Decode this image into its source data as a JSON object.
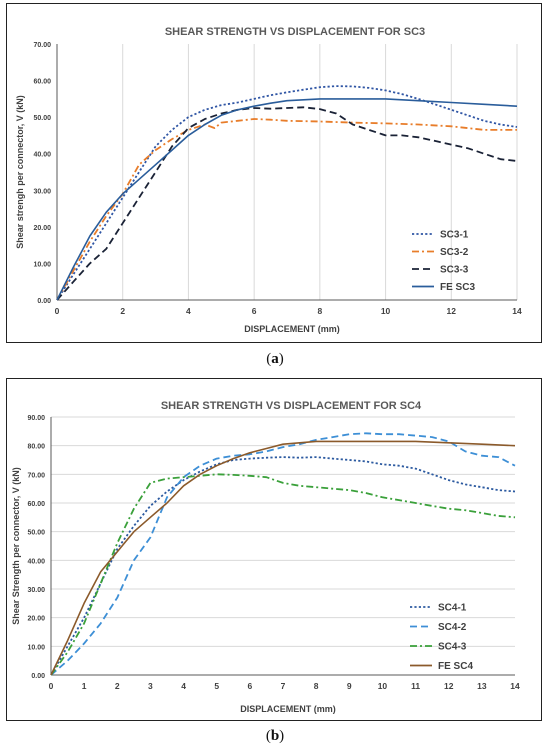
{
  "captions": {
    "a": {
      "open": "(",
      "letter": "a",
      "close": ")"
    },
    "b": {
      "open": "(",
      "letter": "b",
      "close": ")"
    }
  },
  "chart_data": [
    {
      "type": "line",
      "title": "SHEAR STRENGTH VS DISPLACEMENT FOR SC3",
      "xlabel": "DISPLACEMENT (mm)",
      "ylabel": "Shear strengh per connector, V (kN)",
      "xlim": [
        0,
        14
      ],
      "ylim": [
        0,
        70
      ],
      "xticks": [
        "0",
        "2",
        "4",
        "6",
        "8",
        "10",
        "12",
        "14"
      ],
      "xtick_values": [
        0,
        2,
        4,
        6,
        8,
        10,
        12,
        14
      ],
      "yticks": [
        "0.00",
        "10.00",
        "20.00",
        "30.00",
        "40.00",
        "50.00",
        "60.00",
        "70.00"
      ],
      "ytick_values": [
        0,
        10,
        20,
        30,
        40,
        50,
        60,
        70
      ],
      "grid": "vertical",
      "legend_position": "right",
      "series": [
        {
          "name": "SC3-1",
          "color": "#2f55a4",
          "style": "dotted",
          "x": [
            0,
            0.5,
            1,
            1.5,
            2,
            2.5,
            3,
            3.5,
            4,
            4.5,
            5,
            5.5,
            6,
            6.5,
            7,
            7.5,
            8,
            8.5,
            9,
            9.5,
            10,
            10.5,
            11,
            11.5,
            12,
            12.5,
            13,
            13.5,
            14
          ],
          "y": [
            0,
            7,
            14,
            21,
            28,
            35,
            42,
            46.5,
            50,
            52,
            53.3,
            54,
            55,
            56,
            56.8,
            57.5,
            58.2,
            58.5,
            58.4,
            58,
            57.3,
            56.3,
            55,
            53.5,
            52,
            50.5,
            49,
            48,
            47.3
          ]
        },
        {
          "name": "SC3-2",
          "color": "#e87d2a",
          "style": "dashdot",
          "x": [
            0,
            0.5,
            1,
            1.5,
            2,
            2.5,
            3,
            3.5,
            4,
            4.5,
            4.8,
            5,
            5.5,
            6,
            6.5,
            7,
            8,
            9,
            10,
            11,
            12,
            13,
            14
          ],
          "y": [
            0,
            8,
            16,
            23,
            29,
            37,
            41,
            44,
            46.5,
            48,
            47,
            48.5,
            49,
            49.5,
            49.3,
            49,
            48.8,
            48.5,
            48.3,
            48,
            47.5,
            46.5,
            46.5
          ]
        },
        {
          "name": "SC3-3",
          "color": "#1a2236",
          "style": "dashed",
          "x": [
            0,
            0.5,
            1,
            1.5,
            2,
            2.5,
            3,
            3.5,
            4,
            4.5,
            5,
            5.5,
            6,
            6.5,
            7,
            7.5,
            8,
            8.5,
            9,
            9.5,
            10,
            10.5,
            11,
            11.5,
            12,
            12.5,
            13,
            13.5,
            14
          ],
          "y": [
            0,
            5,
            10,
            14,
            21,
            28,
            35,
            42,
            47,
            49.5,
            51,
            52,
            52.5,
            52.3,
            52.5,
            52.7,
            52.2,
            51,
            48,
            46.5,
            45,
            45,
            44.5,
            43.5,
            42.5,
            41.5,
            40,
            38.5,
            38
          ]
        },
        {
          "name": "FE SC3",
          "color": "#2a5d9b",
          "style": "solid",
          "x": [
            0,
            0.5,
            1,
            1.5,
            2,
            2.5,
            3,
            3.5,
            4,
            4.5,
            5,
            5.5,
            6,
            6.5,
            7,
            8,
            9,
            10,
            11,
            12,
            13,
            14
          ],
          "y": [
            0,
            9,
            17.5,
            24,
            29,
            33,
            37,
            41,
            45,
            48,
            50.5,
            52,
            53,
            53.8,
            54.5,
            55,
            55,
            55,
            54.5,
            54,
            53.5,
            53
          ]
        }
      ]
    },
    {
      "type": "line",
      "title": "SHEAR STRENGTH VS DISPLACEMENT FOR SC4",
      "xlabel": "DISPLACEMENT (mm)",
      "ylabel": "Shear Strength per connector, V (kN)",
      "xlim": [
        0,
        14
      ],
      "ylim": [
        0,
        90
      ],
      "xticks": [
        "0",
        "1",
        "2",
        "3",
        "4",
        "5",
        "6",
        "7",
        "8",
        "9",
        "10",
        "11",
        "12",
        "13",
        "14"
      ],
      "xtick_values": [
        0,
        1,
        2,
        3,
        4,
        5,
        6,
        7,
        8,
        9,
        10,
        11,
        12,
        13,
        14
      ],
      "yticks": [
        "0.00",
        "10.00",
        "20.00",
        "30.00",
        "40.00",
        "50.00",
        "60.00",
        "70.00",
        "80.00",
        "90.00"
      ],
      "ytick_values": [
        0,
        10,
        20,
        30,
        40,
        50,
        60,
        70,
        80,
        90
      ],
      "grid": "horizontal",
      "legend_position": "right",
      "series": [
        {
          "name": "SC4-1",
          "color": "#2c5aa0",
          "style": "dotted",
          "x": [
            0,
            0.5,
            1,
            1.5,
            2,
            2.5,
            3,
            3.5,
            4,
            4.5,
            5,
            5.5,
            6,
            6.5,
            7,
            7.5,
            8,
            8.5,
            9,
            9.5,
            10,
            10.5,
            11,
            11.5,
            12,
            12.5,
            13,
            13.5,
            14
          ],
          "y": [
            0,
            10,
            20,
            32,
            44,
            52,
            59,
            64,
            68,
            71,
            73.5,
            75,
            75.5,
            75.8,
            76,
            75.8,
            76,
            75.5,
            75,
            74.5,
            73.5,
            73,
            72,
            70,
            68,
            66.5,
            65.5,
            64.5,
            64
          ]
        },
        {
          "name": "SC4-2",
          "color": "#3d8fd6",
          "style": "dashed",
          "x": [
            0,
            0.5,
            1,
            1.5,
            2,
            2.5,
            3,
            3.5,
            4,
            4.5,
            5,
            5.5,
            6,
            6.5,
            7,
            7.5,
            8,
            8.5,
            9,
            9.5,
            10,
            10.5,
            11,
            11.5,
            12,
            12.5,
            13,
            13.5,
            14
          ],
          "y": [
            0,
            5,
            11,
            18,
            27,
            40,
            48,
            62,
            69,
            73,
            75.5,
            76.5,
            77,
            78,
            79.5,
            80.5,
            82,
            83,
            84,
            84.3,
            84,
            84,
            83.5,
            83,
            81.5,
            78,
            76.5,
            76,
            73
          ]
        },
        {
          "name": "SC4-3",
          "color": "#3aa03a",
          "style": "dashdot",
          "x": [
            0,
            0.5,
            1,
            1.5,
            2,
            2.5,
            3,
            3.5,
            4,
            4.5,
            5,
            5.5,
            6,
            6.5,
            7,
            7.5,
            8,
            8.5,
            9,
            9.5,
            10,
            10.5,
            11,
            11.5,
            12,
            12.5,
            13,
            13.5,
            14
          ],
          "y": [
            0,
            8,
            18,
            32,
            46,
            58,
            67,
            68.5,
            69,
            69.5,
            70,
            69.8,
            69.5,
            69,
            67,
            66,
            65.5,
            65,
            64.5,
            63.5,
            62,
            61,
            60,
            59,
            58,
            57.5,
            56.5,
            55.5,
            55
          ]
        },
        {
          "name": "FE SC4",
          "color": "#8b5a2b",
          "style": "solid",
          "x": [
            0,
            0.5,
            1,
            1.5,
            2,
            2.5,
            3,
            3.5,
            4,
            4.5,
            5,
            5.5,
            6,
            6.5,
            7,
            7.5,
            8,
            9,
            10,
            11,
            12,
            13,
            14
          ],
          "y": [
            0,
            12,
            25,
            36,
            43,
            50,
            55,
            60,
            66,
            70,
            73,
            75.5,
            77.5,
            79,
            80.5,
            81,
            81.5,
            81.5,
            81.5,
            81.5,
            81,
            80.5,
            80
          ]
        }
      ]
    }
  ]
}
